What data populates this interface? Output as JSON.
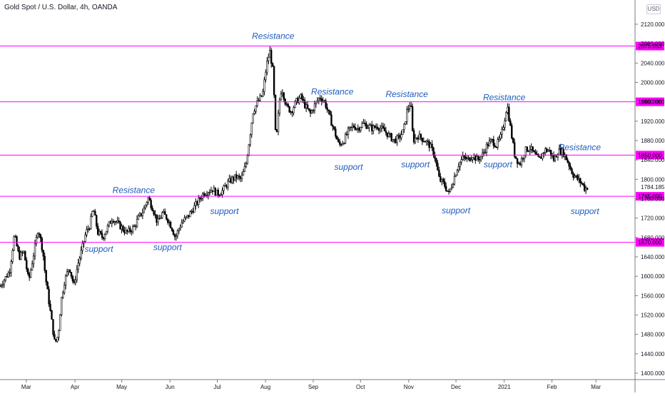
{
  "header": {
    "title": "Gold Spot / U.S. Dollar, 4h, OANDA",
    "currency": "USD"
  },
  "colors": {
    "level_line": "#ff00ff",
    "annotation": "#1f5bbf",
    "candle": "#000000",
    "axis_text": "#131722"
  },
  "chart_data": {
    "type": "candlestick",
    "ylim": [
      1390,
      2140
    ],
    "y_ticks": [
      1400,
      1440,
      1480,
      1520,
      1560,
      1600,
      1640,
      1680,
      1720,
      1760,
      1800,
      1840,
      1880,
      1920,
      1960,
      2000,
      2040,
      2080,
      2120
    ],
    "y_tick_labels": [
      "1400.000",
      "1440.000",
      "1480.000",
      "1520.000",
      "1560.000",
      "1600.000",
      "1640.000",
      "1680.000",
      "1720.000",
      "1760.000",
      "1800.000",
      "1840.000",
      "1880.000",
      "1920.000",
      "1960.000",
      "2000.000",
      "2040.000",
      "2080.000",
      "2120.000"
    ],
    "x_ticks": [
      {
        "label": "Mar",
        "t": 0.05
      },
      {
        "label": "Apr",
        "t": 1.07
      },
      {
        "label": "May",
        "t": 2.05
      },
      {
        "label": "Jun",
        "t": 3.06
      },
      {
        "label": "Jul",
        "t": 4.05
      },
      {
        "label": "Aug",
        "t": 5.06
      },
      {
        "label": "Sep",
        "t": 6.06
      },
      {
        "label": "Oct",
        "t": 7.05
      },
      {
        "label": "Nov",
        "t": 8.06
      },
      {
        "label": "Dec",
        "t": 9.05
      },
      {
        "label": "2021",
        "t": 10.06
      },
      {
        "label": "Feb",
        "t": 11.06
      },
      {
        "label": "Mar",
        "t": 11.98
      }
    ],
    "levels": [
      {
        "value": 2075.053,
        "label": "2075.053"
      },
      {
        "value": 1960.0,
        "label": "1960.000"
      },
      {
        "value": 1850.0,
        "label": "1850.000"
      },
      {
        "value": 1765.0,
        "label": "1765.000"
      },
      {
        "value": 1670.0,
        "label": "1670.000"
      }
    ],
    "last_price": {
      "value": 1784.185,
      "label": "1784.185"
    },
    "price_path": [
      [
        -0.5,
        1580
      ],
      [
        -0.3,
        1610
      ],
      [
        -0.2,
        1685
      ],
      [
        -0.1,
        1640
      ],
      [
        0.0,
        1650
      ],
      [
        0.1,
        1590
      ],
      [
        0.25,
        1670
      ],
      [
        0.3,
        1700
      ],
      [
        0.4,
        1650
      ],
      [
        0.45,
        1600
      ],
      [
        0.55,
        1530
      ],
      [
        0.65,
        1460
      ],
      [
        0.72,
        1480
      ],
      [
        0.78,
        1550
      ],
      [
        0.85,
        1590
      ],
      [
        0.95,
        1620
      ],
      [
        1.05,
        1580
      ],
      [
        1.12,
        1620
      ],
      [
        1.2,
        1650
      ],
      [
        1.3,
        1690
      ],
      [
        1.38,
        1705
      ],
      [
        1.45,
        1740
      ],
      [
        1.55,
        1690
      ],
      [
        1.65,
        1680
      ],
      [
        1.75,
        1700
      ],
      [
        1.85,
        1720
      ],
      [
        1.95,
        1710
      ],
      [
        2.05,
        1700
      ],
      [
        2.15,
        1690
      ],
      [
        2.3,
        1700
      ],
      [
        2.4,
        1720
      ],
      [
        2.5,
        1735
      ],
      [
        2.6,
        1762
      ],
      [
        2.7,
        1740
      ],
      [
        2.8,
        1710
      ],
      [
        2.9,
        1730
      ],
      [
        3.0,
        1720
      ],
      [
        3.1,
        1700
      ],
      [
        3.17,
        1680
      ],
      [
        3.3,
        1710
      ],
      [
        3.45,
        1725
      ],
      [
        3.55,
        1740
      ],
      [
        3.65,
        1755
      ],
      [
        3.75,
        1770
      ],
      [
        3.85,
        1775
      ],
      [
        3.95,
        1780
      ],
      [
        4.05,
        1770
      ],
      [
        4.15,
        1775
      ],
      [
        4.25,
        1790
      ],
      [
        4.35,
        1800
      ],
      [
        4.45,
        1805
      ],
      [
        4.55,
        1800
      ],
      [
        4.65,
        1830
      ],
      [
        4.72,
        1880
      ],
      [
        4.8,
        1940
      ],
      [
        4.9,
        1960
      ],
      [
        5.0,
        1975
      ],
      [
        5.08,
        2035
      ],
      [
        5.15,
        2065
      ],
      [
        5.22,
        2020
      ],
      [
        5.28,
        1870
      ],
      [
        5.35,
        1960
      ],
      [
        5.4,
        1990
      ],
      [
        5.5,
        1950
      ],
      [
        5.6,
        1940
      ],
      [
        5.7,
        1960
      ],
      [
        5.8,
        1970
      ],
      [
        5.9,
        1950
      ],
      [
        6.0,
        1935
      ],
      [
        6.1,
        1955
      ],
      [
        6.2,
        1970
      ],
      [
        6.3,
        1960
      ],
      [
        6.4,
        1930
      ],
      [
        6.5,
        1900
      ],
      [
        6.6,
        1870
      ],
      [
        6.7,
        1880
      ],
      [
        6.8,
        1900
      ],
      [
        6.9,
        1910
      ],
      [
        7.0,
        1905
      ],
      [
        7.1,
        1915
      ],
      [
        7.2,
        1910
      ],
      [
        7.3,
        1905
      ],
      [
        7.4,
        1910
      ],
      [
        7.55,
        1900
      ],
      [
        7.65,
        1890
      ],
      [
        7.75,
        1880
      ],
      [
        7.85,
        1885
      ],
      [
        7.95,
        1900
      ],
      [
        8.02,
        1940
      ],
      [
        8.1,
        1960
      ],
      [
        8.15,
        1880
      ],
      [
        8.25,
        1890
      ],
      [
        8.4,
        1880
      ],
      [
        8.5,
        1870
      ],
      [
        8.6,
        1850
      ],
      [
        8.7,
        1800
      ],
      [
        8.8,
        1790
      ],
      [
        8.9,
        1770
      ],
      [
        9.0,
        1800
      ],
      [
        9.1,
        1830
      ],
      [
        9.2,
        1845
      ],
      [
        9.3,
        1840
      ],
      [
        9.4,
        1850
      ],
      [
        9.5,
        1840
      ],
      [
        9.6,
        1850
      ],
      [
        9.7,
        1870
      ],
      [
        9.8,
        1880
      ],
      [
        9.9,
        1870
      ],
      [
        10.0,
        1890
      ],
      [
        10.08,
        1930
      ],
      [
        10.12,
        1955
      ],
      [
        10.2,
        1900
      ],
      [
        10.28,
        1850
      ],
      [
        10.38,
        1830
      ],
      [
        10.5,
        1860
      ],
      [
        10.6,
        1865
      ],
      [
        10.7,
        1850
      ],
      [
        10.8,
        1840
      ],
      [
        10.9,
        1860
      ],
      [
        11.0,
        1860
      ],
      [
        11.1,
        1840
      ],
      [
        11.2,
        1860
      ],
      [
        11.3,
        1855
      ],
      [
        11.4,
        1835
      ],
      [
        11.5,
        1810
      ],
      [
        11.6,
        1800
      ],
      [
        11.7,
        1790
      ],
      [
        11.75,
        1780
      ],
      [
        11.8,
        1784
      ]
    ],
    "annotations": [
      {
        "text": "Resistance",
        "t": 5.22,
        "price": 2090
      },
      {
        "text": "Resistance",
        "t": 6.46,
        "price": 1975
      },
      {
        "text": "Resistance",
        "t": 8.02,
        "price": 1970
      },
      {
        "text": "Resistance",
        "t": 10.06,
        "price": 1963
      },
      {
        "text": "Resistance",
        "t": 11.64,
        "price": 1860
      },
      {
        "text": "Resistance",
        "t": 2.3,
        "price": 1772
      },
      {
        "text": "support",
        "t": 1.57,
        "price": 1650
      },
      {
        "text": "support",
        "t": 3.01,
        "price": 1654
      },
      {
        "text": "support",
        "t": 4.2,
        "price": 1728
      },
      {
        "text": "support",
        "t": 6.8,
        "price": 1820
      },
      {
        "text": "support",
        "t": 8.2,
        "price": 1825
      },
      {
        "text": "support",
        "t": 9.05,
        "price": 1730
      },
      {
        "text": "support",
        "t": 9.93,
        "price": 1825
      },
      {
        "text": "support",
        "t": 11.75,
        "price": 1728
      }
    ]
  }
}
